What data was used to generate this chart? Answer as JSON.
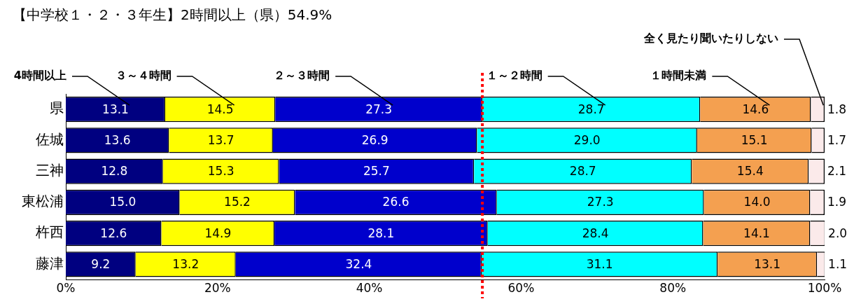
{
  "chart_data": {
    "type": "bar",
    "orientation": "horizontal",
    "stacked": true,
    "title": "【中学校１・２・３年生】2時間以上（県）54.9%",
    "categories": [
      "県",
      "佐城",
      "三神",
      "東松浦",
      "杵西",
      "藤津"
    ],
    "series": [
      {
        "name": "4時間以上",
        "color": "#000080",
        "values": [
          13.1,
          13.6,
          12.8,
          15.0,
          12.6,
          9.2
        ],
        "value_labels": [
          "13.1",
          "13.6",
          "12.8",
          "15.0",
          "12.6",
          "9.2"
        ]
      },
      {
        "name": "３～４時間",
        "color": "#ffff00",
        "values": [
          14.5,
          13.7,
          15.3,
          15.2,
          14.9,
          13.2
        ],
        "value_labels": [
          "14.5",
          "13.7",
          "15.3",
          "15.2",
          "14.9",
          "13.2"
        ]
      },
      {
        "name": "２～３時間",
        "color": "#0000cc",
        "values": [
          27.3,
          26.9,
          25.7,
          26.6,
          28.1,
          32.4
        ],
        "value_labels": [
          "27.3",
          "26.9",
          "25.7",
          "26.6",
          "28.1",
          "32.4"
        ]
      },
      {
        "name": "１～２時間",
        "color": "#00ffff",
        "values": [
          28.7,
          29.0,
          28.7,
          27.3,
          28.4,
          31.1
        ],
        "value_labels": [
          "28.7",
          "29.0",
          "28.7",
          "27.3",
          "28.4",
          "31.1"
        ]
      },
      {
        "name": "１時間未満",
        "color": "#f4a050",
        "values": [
          14.6,
          15.1,
          15.4,
          14.0,
          14.1,
          13.1
        ],
        "value_labels": [
          "14.6",
          "15.1",
          "15.4",
          "14.0",
          "14.1",
          "13.1"
        ]
      },
      {
        "name": "全く見たり聞いたりしない",
        "color": "#fbeaea",
        "values": [
          1.8,
          1.7,
          2.1,
          1.9,
          2.0,
          1.1
        ],
        "value_labels": [
          "1.8",
          "1.7",
          "2.1",
          "1.9",
          "2.0",
          "1.1"
        ]
      }
    ],
    "xlim": [
      0,
      100
    ],
    "xticks": [
      {
        "value": 0,
        "label": "0%"
      },
      {
        "value": 20,
        "label": "20%"
      },
      {
        "value": 40,
        "label": "40%"
      },
      {
        "value": 60,
        "label": "60%"
      },
      {
        "value": 80,
        "label": "80%"
      },
      {
        "value": 100,
        "label": "100%"
      }
    ],
    "ref_lines": [
      {
        "axis": "x",
        "value": 54.9,
        "color": "#ff0000",
        "line_style": "dotted"
      }
    ],
    "legend": false,
    "grid": false
  }
}
